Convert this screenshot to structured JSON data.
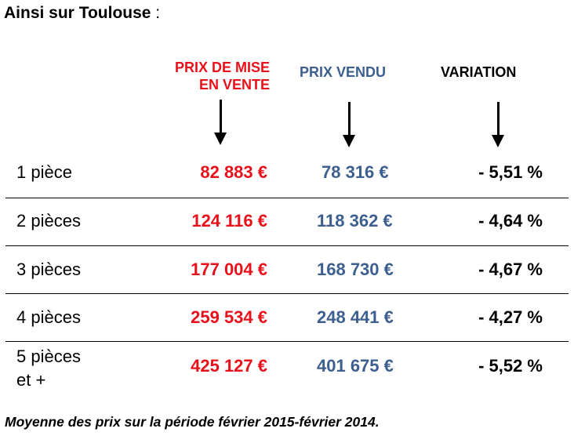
{
  "title": {
    "bold": "Ainsi sur Toulouse",
    "suffix": " :"
  },
  "headers": {
    "mise_en_vente_line1": "PRIX DE MISE",
    "mise_en_vente_line2": "EN VENTE",
    "prix_vendu": "PRIX VENDU",
    "variation": "VARIATION"
  },
  "rows": [
    {
      "label": "1 pièce",
      "mise": "82 883 €",
      "vendu": "78 316 €",
      "variation": "- 5,51 %"
    },
    {
      "label": "2 pièces",
      "mise": "124 116 €",
      "vendu": "118 362 €",
      "variation": "- 4,64 %"
    },
    {
      "label": "3 pièces",
      "mise": "177 004 €",
      "vendu": "168 730 €",
      "variation": "- 4,67 %"
    },
    {
      "label": "4 pièces",
      "mise": "259 534 €",
      "vendu": "248 441 €",
      "variation": "- 4,27 %"
    },
    {
      "label_line1": "5 pièces",
      "label_line2": "et +",
      "mise": "425 127 €",
      "vendu": "401 675 €",
      "variation": "- 5,52 %"
    }
  ],
  "footnote": "Moyenne des prix sur la période février 2015-février 2014.",
  "colors": {
    "mise": "#e8101b",
    "vendu": "#3d5f8f",
    "variation": "#000000"
  }
}
